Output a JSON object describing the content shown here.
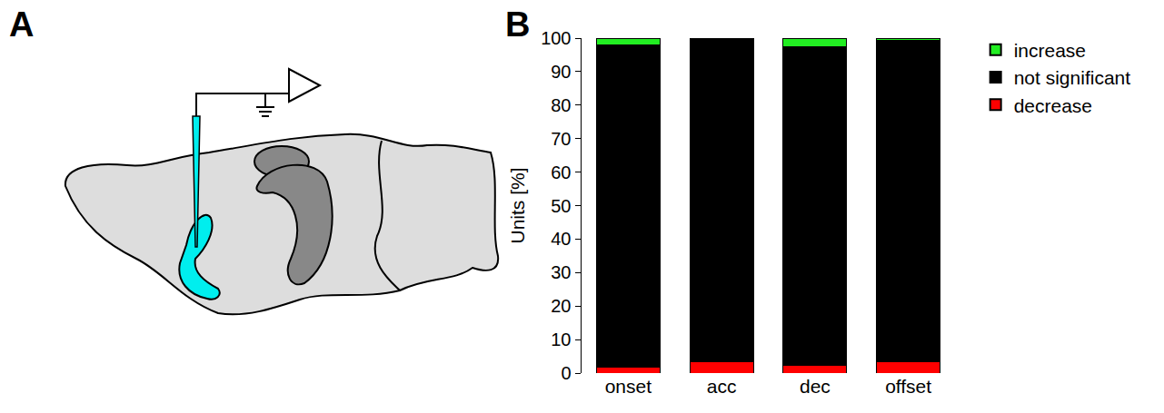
{
  "panel_labels": [
    "A",
    "B"
  ],
  "chart_data": {
    "type": "bar",
    "stacked": true,
    "categories": [
      "onset",
      "acc",
      "dec",
      "offset"
    ],
    "ylabel": "Units [%]",
    "ylim": [
      0,
      100
    ],
    "yticks": [
      0,
      10,
      20,
      30,
      40,
      50,
      60,
      70,
      80,
      90,
      100
    ],
    "grid": false,
    "legend": "right",
    "series": [
      {
        "name": "decrease",
        "color": "#ff0000",
        "values": [
          1.8,
          3.5,
          2.3,
          3.3
        ]
      },
      {
        "name": "not significant",
        "color": "#000000",
        "values": [
          96.2,
          96.5,
          95.2,
          95.9
        ]
      },
      {
        "name": "increase",
        "color": "#22ee22",
        "values": [
          2,
          0,
          2.5,
          0.8
        ]
      }
    ]
  }
}
